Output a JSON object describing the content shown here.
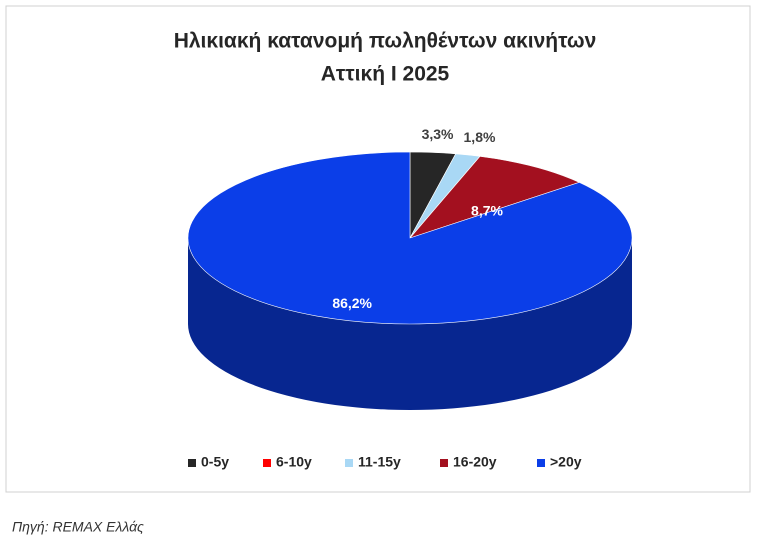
{
  "chart_data": {
    "type": "pie",
    "title": [
      "Ηλικιακή κατανομή πωληθέντων ακινήτων",
      "Αττική Ι 2025"
    ],
    "categories": [
      "0-5y",
      "6-10y",
      "11-15y",
      "16-20y",
      ">20y"
    ],
    "values": [
      3.3,
      0,
      1.8,
      8.7,
      86.2
    ],
    "value_labels": [
      "3,3%",
      null,
      "1,8%",
      "8,7%",
      "86,2%"
    ],
    "colors": [
      "#262626",
      "#ff0000",
      "#a9d8f5",
      "#a3101f",
      "#0b3ee8"
    ],
    "legend": "bottom",
    "source": "Πηγή: REMAX Ελλάς"
  }
}
